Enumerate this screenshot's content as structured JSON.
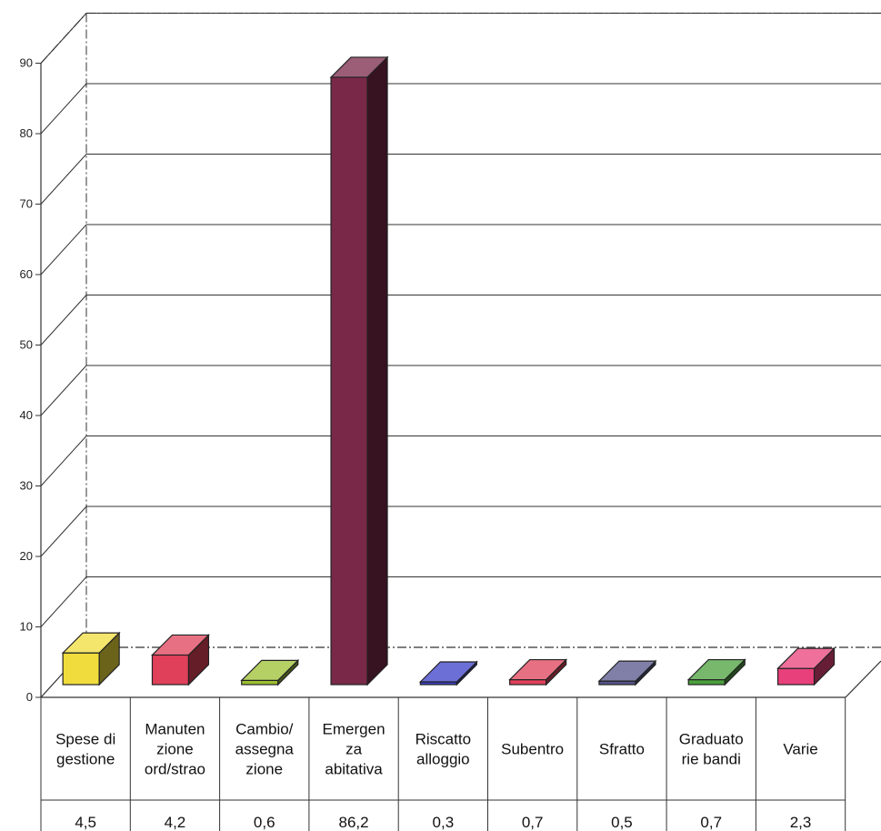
{
  "chart_data": {
    "type": "bar",
    "categories": [
      [
        "Spese di",
        "gestione"
      ],
      [
        "Manuten",
        "zione",
        "ord/strao"
      ],
      [
        "Cambio/",
        "assegna",
        "zione"
      ],
      [
        "Emergen",
        "za",
        "abitativa"
      ],
      [
        "Riscatto",
        "alloggio"
      ],
      [
        "Subentro"
      ],
      [
        "Sfratto"
      ],
      [
        "Graduato",
        "rie bandi"
      ],
      [
        "Varie"
      ]
    ],
    "values": [
      4.5,
      4.2,
      0.6,
      86.2,
      0.3,
      0.7,
      0.5,
      0.7,
      2.3
    ],
    "value_labels": [
      "4,5",
      "4,2",
      "0,6",
      "86,2",
      "0,3",
      "0,7",
      "0,5",
      "0,7",
      "2,3"
    ],
    "colors": [
      "#f0dc3c",
      "#e0405a",
      "#9cc030",
      "#7a2848",
      "#3b3fc8",
      "#e0405a",
      "#55548a",
      "#4aa03c",
      "#e8407a"
    ],
    "y_ticks": [
      "0",
      "10",
      "20",
      "30",
      "40",
      "50",
      "60",
      "70",
      "80",
      "90"
    ],
    "ylim": [
      0,
      90
    ],
    "grid": true,
    "legend": "data table below chart",
    "title": "",
    "xlabel": "",
    "ylabel": ""
  }
}
